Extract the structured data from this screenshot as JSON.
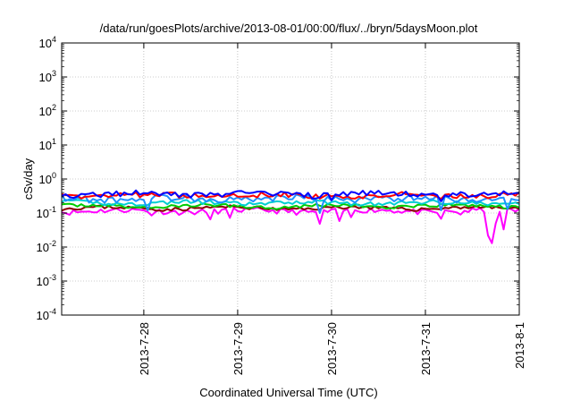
{
  "chart_data": {
    "type": "line",
    "title": "/data/run/goesPlots/archive/2013-08-01/00:00/flux/../bryn/5daysMoon.plot",
    "xlabel": "Coordinated Universal Time (UTC)",
    "ylabel": "cSv/day",
    "yscale": "log",
    "ylim": [
      0.0001,
      10000
    ],
    "xlim": [
      "2013-07-27T03:00",
      "2013-08-01T00:00"
    ],
    "grid": true,
    "legend": "none",
    "y_ticks": [
      {
        "value": 0.0001,
        "base": "10",
        "exp": "-4"
      },
      {
        "value": 0.001,
        "base": "10",
        "exp": "-3"
      },
      {
        "value": 0.01,
        "base": "10",
        "exp": "-2"
      },
      {
        "value": 0.1,
        "base": "10",
        "exp": "-1"
      },
      {
        "value": 1,
        "base": "10",
        "exp": "0"
      },
      {
        "value": 10,
        "base": "10",
        "exp": "1"
      },
      {
        "value": 100,
        "base": "10",
        "exp": "2"
      },
      {
        "value": 1000,
        "base": "10",
        "exp": "3"
      },
      {
        "value": 10000,
        "base": "10",
        "exp": "4"
      }
    ],
    "x_ticks": [
      {
        "value": "2013-07-28T00:00",
        "label": "2013-7-28"
      },
      {
        "value": "2013-07-29T00:00",
        "label": "2013-7-29"
      },
      {
        "value": "2013-07-30T00:00",
        "label": "2013-7-30"
      },
      {
        "value": "2013-07-31T00:00",
        "label": "2013-7-31"
      },
      {
        "value": "2013-08-01T00:00",
        "label": "2013-8-1"
      }
    ],
    "series": [
      {
        "color": "#ff00ff",
        "base": 0.115,
        "jitter": 0.18,
        "seed": 11,
        "dips": [
          {
            "t": "2013-07-28T02:00",
            "v": 0.085
          },
          {
            "t": "2013-07-28T17:00",
            "v": 0.065
          },
          {
            "t": "2013-07-28T22:00",
            "v": 0.072
          },
          {
            "t": "2013-07-29T21:00",
            "v": 0.048
          },
          {
            "t": "2013-07-30T02:00",
            "v": 0.058
          },
          {
            "t": "2013-07-30T05:00",
            "v": 0.075
          },
          {
            "t": "2013-07-31T04:00",
            "v": 0.068
          },
          {
            "t": "2013-07-31T09:00",
            "v": 0.09
          },
          {
            "t": "2013-07-31T16:00",
            "v": 0.022
          },
          {
            "t": "2013-07-31T17:00",
            "v": 0.013
          },
          {
            "t": "2013-07-31T18:00",
            "v": 0.05
          },
          {
            "t": "2013-07-31T20:00",
            "v": 0.033
          }
        ]
      },
      {
        "color": "#8b0000",
        "base": 0.14,
        "jitter": 0.12,
        "seed": 23,
        "dips": []
      },
      {
        "color": "#00cc00",
        "base": 0.16,
        "jitter": 0.12,
        "seed": 37,
        "dips": []
      },
      {
        "color": "#00ced1",
        "base": 0.2,
        "jitter": 0.14,
        "seed": 41,
        "dips": []
      },
      {
        "color": "#1e90ff",
        "base": 0.27,
        "jitter": 0.22,
        "seed": 53,
        "dips": [
          {
            "t": "2013-07-28T01:00",
            "v": 0.12
          },
          {
            "t": "2013-07-29T21:00",
            "v": 0.1
          },
          {
            "t": "2013-07-31T04:00",
            "v": 0.12
          },
          {
            "t": "2013-07-31T21:00",
            "v": 0.13
          }
        ]
      },
      {
        "color": "#ff0000",
        "base": 0.33,
        "jitter": 0.18,
        "seed": 67,
        "dips": []
      },
      {
        "color": "#0000ff",
        "base": 0.36,
        "jitter": 0.2,
        "seed": 79,
        "dips": [
          {
            "t": "2013-07-30T00:00",
            "v": 0.24
          },
          {
            "t": "2013-07-31T04:00",
            "v": 0.22
          }
        ]
      }
    ]
  }
}
